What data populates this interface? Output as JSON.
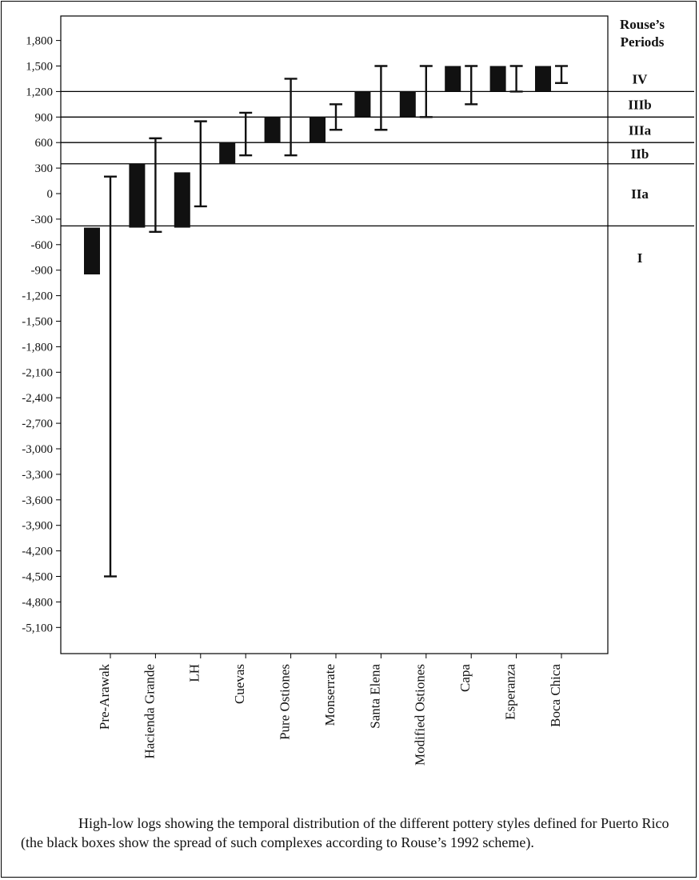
{
  "chart_data": {
    "type": "high-low",
    "y_ticks": [
      "1,800",
      "1,500",
      "1,200",
      "900",
      "600",
      "300",
      "0",
      "-300",
      "-600",
      "-900",
      "-1,200",
      "-1,500",
      "-1,800",
      "-2,100",
      "-2,400",
      "-2,700",
      "-3,000",
      "-3,300",
      "-3,600",
      "-3,900",
      "-4,200",
      "-4,500",
      "-4,800",
      "-5,100"
    ],
    "ylim": [
      -5400,
      2000
    ],
    "categories": [
      "Pre-Arawak",
      "Hacienda Grande",
      "LH",
      "Cuevas",
      "Pure Ostiones",
      "Monserrate",
      "Santa Elena",
      "Modified Ostiones",
      "Capa",
      "Esperanza",
      "Boca Chica"
    ],
    "boxes": [
      {
        "low": -950,
        "high": -400
      },
      {
        "low": -400,
        "high": 350
      },
      {
        "low": -400,
        "high": 250
      },
      {
        "low": 350,
        "high": 600
      },
      {
        "low": 600,
        "high": 900
      },
      {
        "low": 600,
        "high": 900
      },
      {
        "low": 900,
        "high": 1200
      },
      {
        "low": 900,
        "high": 1200
      },
      {
        "low": 1200,
        "high": 1500
      },
      {
        "low": 1200,
        "high": 1500
      },
      {
        "low": 1200,
        "high": 1500
      }
    ],
    "ranges": [
      {
        "low": -4500,
        "high": 200
      },
      {
        "low": -450,
        "high": 650
      },
      {
        "low": -150,
        "high": 850
      },
      {
        "low": 450,
        "high": 950
      },
      {
        "low": 450,
        "high": 1350
      },
      {
        "low": 750,
        "high": 1050
      },
      {
        "low": 750,
        "high": 1500
      },
      {
        "low": 900,
        "high": 1500
      },
      {
        "low": 1050,
        "high": 1500
      },
      {
        "low": 1200,
        "high": 1500
      },
      {
        "low": 1300,
        "high": 1500
      }
    ],
    "period_boundaries": [
      1200,
      900,
      600,
      350,
      -380
    ],
    "periods_title": [
      "Rouse’s",
      "Periods"
    ],
    "periods": [
      {
        "label": "IV",
        "value": 1350
      },
      {
        "label": "IIIb",
        "value": 1050
      },
      {
        "label": "IIIa",
        "value": 750
      },
      {
        "label": "IIb",
        "value": 470
      },
      {
        "label": "IIa",
        "value": 0
      },
      {
        "label": "I",
        "value": -750
      }
    ]
  },
  "caption": "High-low logs showing the temporal distribution of the different pottery styles defined for Puerto Rico (the black boxes show the spread of such complexes according to Rouse’s 1992 scheme)."
}
